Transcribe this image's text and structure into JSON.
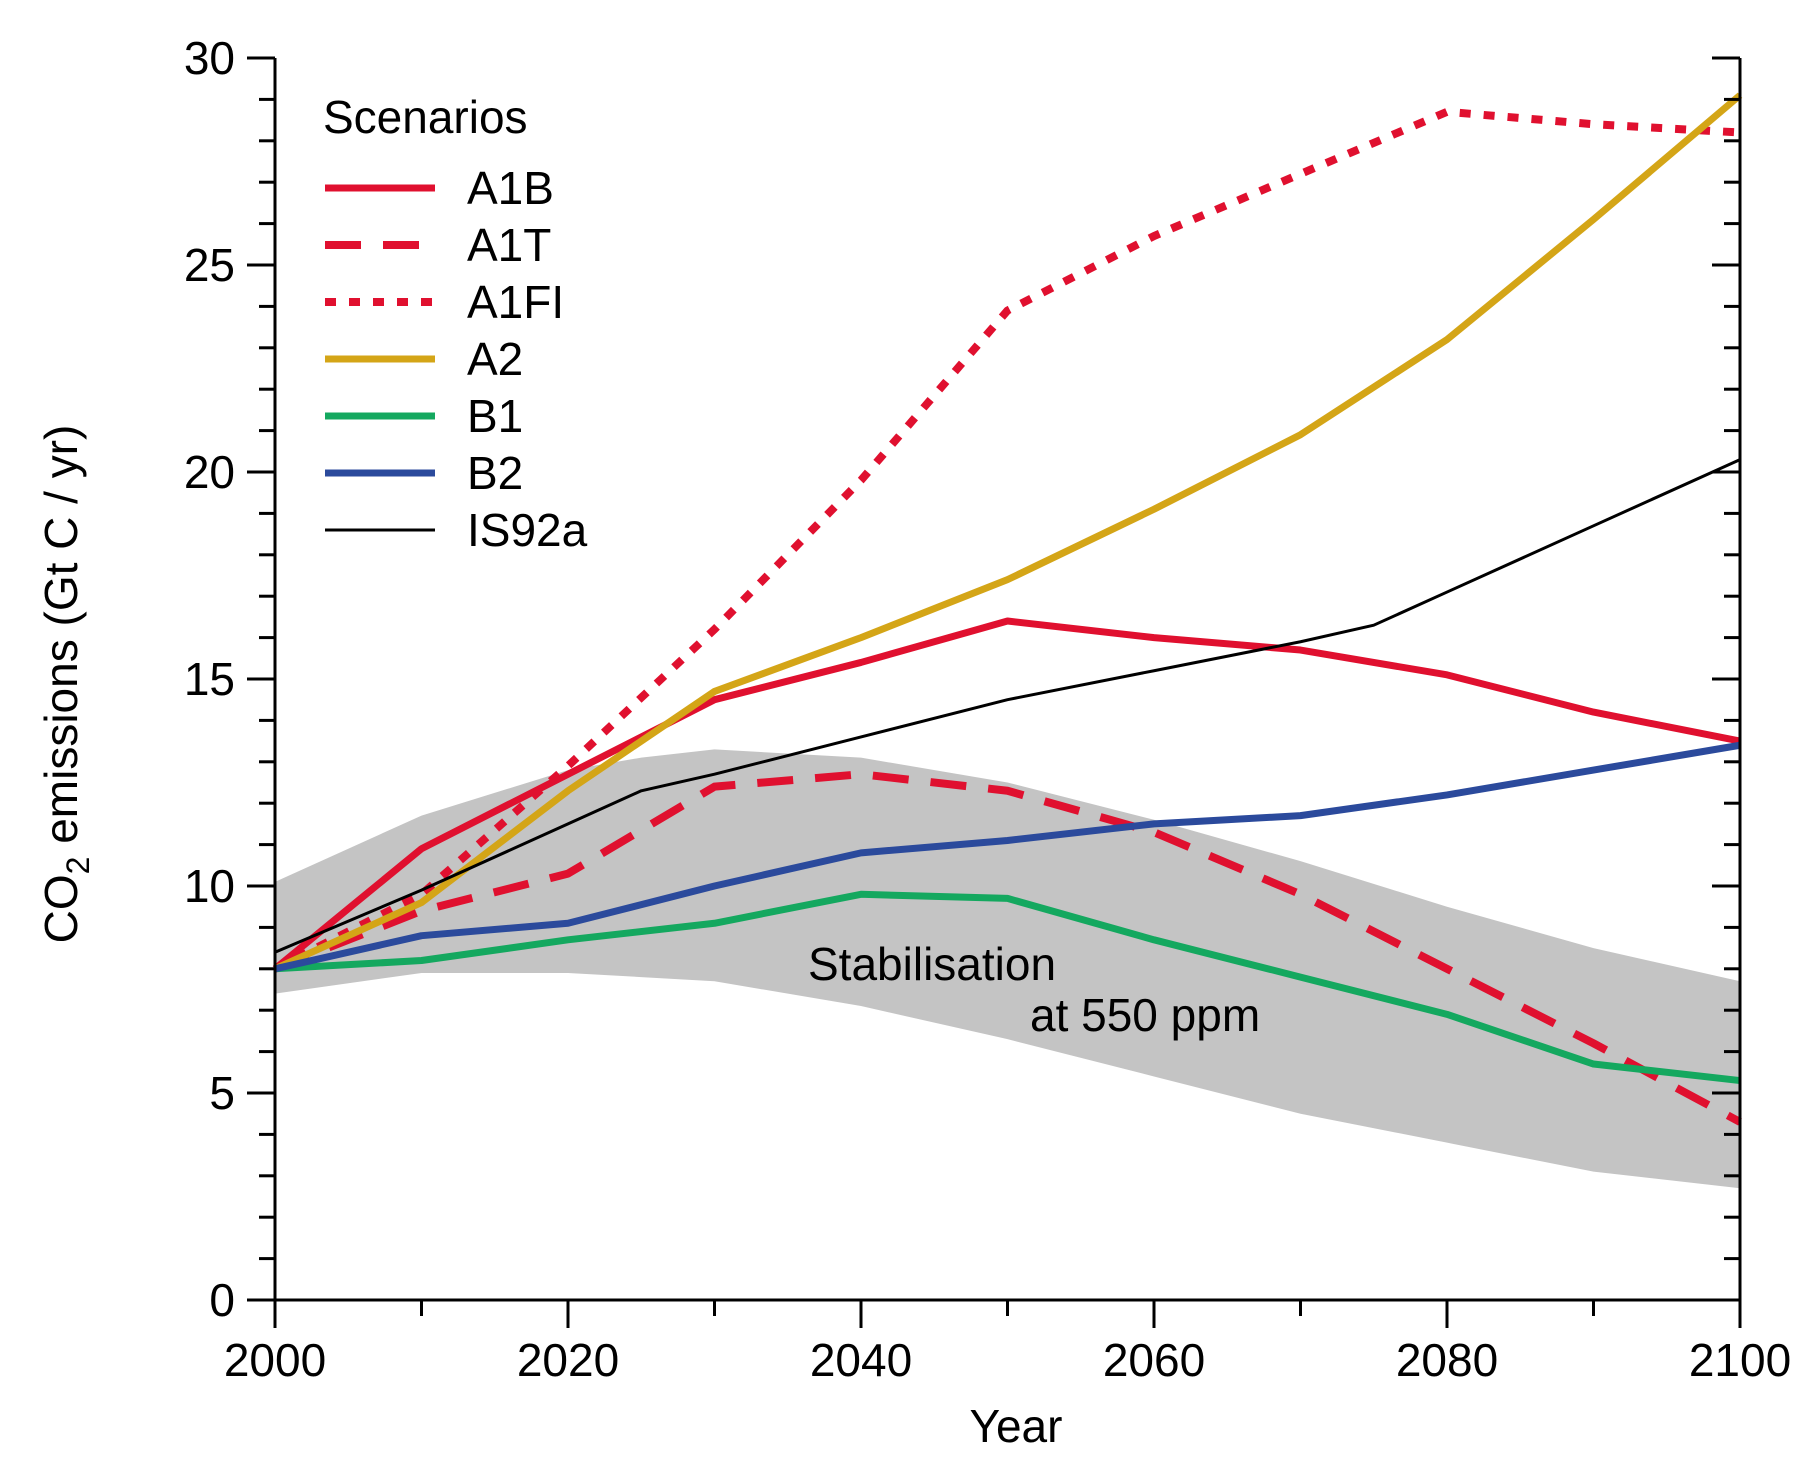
{
  "chart_data": {
    "type": "line",
    "xlabel": "Year",
    "ylabel": {
      "prefix": "CO",
      "subscript": "2",
      "suffix": " emissions (Gt C / yr)"
    },
    "xlim": [
      2000,
      2100
    ],
    "ylim": [
      0,
      30
    ],
    "x_ticks": [
      2000,
      2020,
      2040,
      2060,
      2080,
      2100
    ],
    "x_tick_labels": [
      "2000",
      "2020",
      "2040",
      "2060",
      "2080",
      "2100"
    ],
    "y_ticks": [
      0,
      5,
      10,
      15,
      20,
      25,
      30
    ],
    "y_tick_labels": [
      "0",
      "5",
      "10",
      "15",
      "20",
      "25",
      "30"
    ],
    "x_minor_step": 10,
    "y_minor_step": 1,
    "grid": false,
    "legend": {
      "title": "Scenarios",
      "placement": "top-left"
    },
    "band": {
      "label_line1": "Stabilisation",
      "label_line2": "at 550 ppm",
      "color": "#c4c4c4",
      "x": [
        2000,
        2010,
        2020,
        2025,
        2030,
        2040,
        2050,
        2060,
        2070,
        2080,
        2090,
        2100
      ],
      "upper": [
        10.1,
        11.7,
        12.8,
        13.1,
        13.3,
        13.1,
        12.5,
        11.6,
        10.6,
        9.5,
        8.5,
        7.7
      ],
      "lower": [
        7.4,
        7.9,
        7.9,
        7.8,
        7.7,
        7.1,
        6.3,
        5.4,
        4.5,
        3.8,
        3.1,
        2.7
      ]
    },
    "series": [
      {
        "name": "A1B",
        "color": "#e0102f",
        "style": "solid",
        "width": 7,
        "x": [
          2000,
          2010,
          2020,
          2030,
          2040,
          2050,
          2060,
          2070,
          2080,
          2090,
          2100
        ],
        "y": [
          8.0,
          10.9,
          12.7,
          14.5,
          15.4,
          16.4,
          16.0,
          15.7,
          15.1,
          14.2,
          13.5
        ]
      },
      {
        "name": "A1T",
        "color": "#e0102f",
        "style": "dashed",
        "width": 8,
        "x": [
          2000,
          2010,
          2020,
          2030,
          2040,
          2050,
          2060,
          2070,
          2080,
          2090,
          2100
        ],
        "y": [
          8.0,
          9.4,
          10.3,
          12.4,
          12.7,
          12.3,
          11.3,
          9.8,
          8.0,
          6.2,
          4.3
        ]
      },
      {
        "name": "A1FI",
        "color": "#e0102f",
        "style": "dotted",
        "width": 8,
        "x": [
          2000,
          2010,
          2020,
          2030,
          2040,
          2050,
          2060,
          2070,
          2080,
          2090,
          2100
        ],
        "y": [
          8.0,
          9.8,
          12.9,
          16.2,
          19.8,
          23.9,
          25.7,
          27.2,
          28.7,
          28.4,
          28.2
        ]
      },
      {
        "name": "A2",
        "color": "#d4a517",
        "style": "solid",
        "width": 7,
        "x": [
          2000,
          2010,
          2020,
          2030,
          2040,
          2050,
          2060,
          2070,
          2080,
          2090,
          2100
        ],
        "y": [
          8.0,
          9.6,
          12.3,
          14.7,
          16.0,
          17.4,
          19.1,
          20.9,
          23.2,
          26.1,
          29.1
        ]
      },
      {
        "name": "B1",
        "color": "#14a85f",
        "style": "solid",
        "width": 7,
        "x": [
          2000,
          2010,
          2020,
          2030,
          2040,
          2050,
          2060,
          2070,
          2080,
          2090,
          2100
        ],
        "y": [
          8.0,
          8.2,
          8.7,
          9.1,
          9.8,
          9.7,
          8.7,
          7.8,
          6.9,
          5.7,
          5.3
        ]
      },
      {
        "name": "B2",
        "color": "#2b4a9c",
        "style": "solid",
        "width": 7,
        "x": [
          2000,
          2010,
          2020,
          2030,
          2040,
          2050,
          2060,
          2070,
          2080,
          2090,
          2100
        ],
        "y": [
          8.0,
          8.8,
          9.1,
          10.0,
          10.8,
          11.1,
          11.5,
          11.7,
          12.2,
          12.8,
          13.4
        ]
      },
      {
        "name": "IS92a",
        "color": "#000000",
        "style": "solid",
        "width": 3,
        "x": [
          2000,
          2010,
          2020,
          2025,
          2030,
          2040,
          2050,
          2060,
          2070,
          2075,
          2080,
          2090,
          2100
        ],
        "y": [
          8.4,
          9.9,
          11.5,
          12.3,
          12.7,
          13.6,
          14.5,
          15.2,
          15.9,
          16.3,
          17.1,
          18.7,
          20.3
        ]
      }
    ]
  }
}
